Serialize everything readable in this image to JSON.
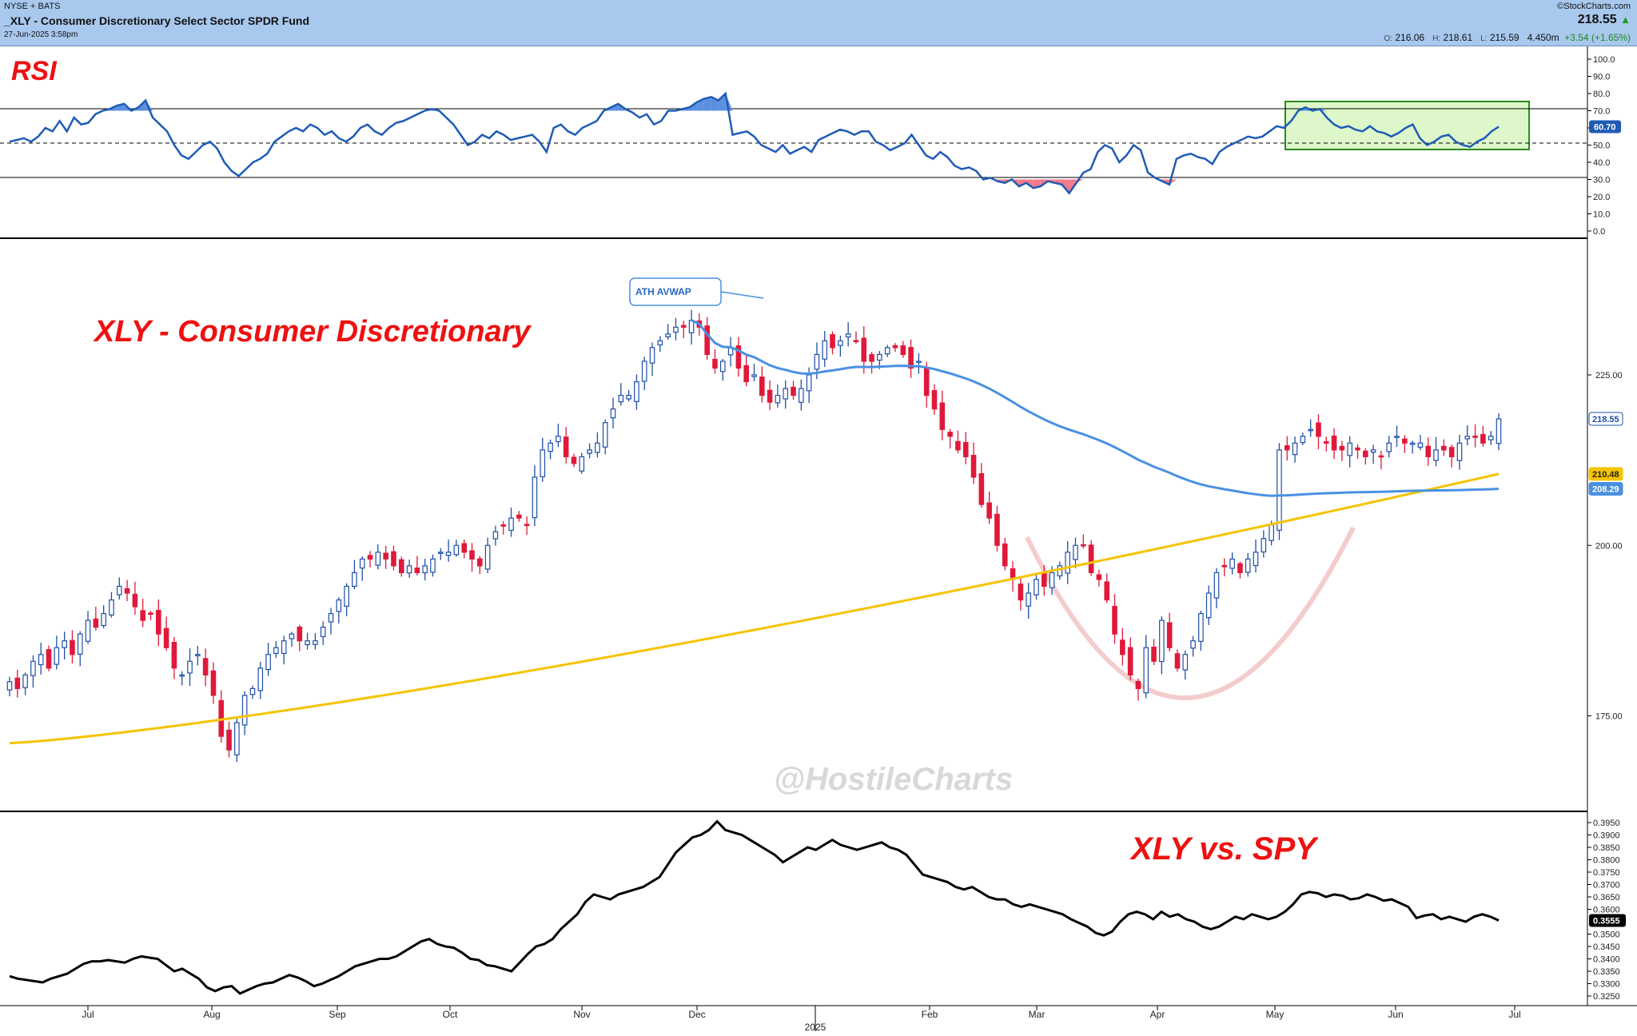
{
  "header": {
    "exchange": "NYSE + BATS",
    "symbol_title": "_XLY - Consumer Discretionary Select Sector SPDR Fund",
    "datetime": "27-Jun-2025 3:58pm",
    "brand": "©StockCharts.com",
    "last_price": "218.55",
    "up_arrow": "▲",
    "ohlc": {
      "open_label": "O:",
      "open": "216.06",
      "high_label": "H:",
      "high": "218.61",
      "low_label": "L:",
      "low": "215.59",
      "volume": "4.450m",
      "change": "+3.54 (+1.65%)"
    }
  },
  "annotations": {
    "rsi_title": "RSI",
    "price_title": "XLY - Consumer Discretionary",
    "ratio_title": "XLY vs. SPY",
    "callout": "ATH AVWAP",
    "watermark": "@HostileCharts"
  },
  "colors": {
    "up": "#1f4fa8",
    "down": "#e0193a",
    "sma200": "#f5c400",
    "avwap": "#4a90e2",
    "rsi_line": "#1f5bb5",
    "ratio_line": "#000000",
    "header_bg": "#a9c8ee",
    "title_red": "#ee1111"
  },
  "chart_data": [
    {
      "type": "line",
      "name": "RSI",
      "ylim": [
        0,
        100
      ],
      "y_ticks": [
        "100.0",
        "90.0",
        "80.0",
        "70.0",
        "60.0",
        "50.0",
        "40.0",
        "30.0",
        "20.0",
        "10.0",
        "0.0"
      ],
      "overbought": 70,
      "oversold": 30,
      "midline": 50,
      "last_value": "60.70",
      "values": [
        52,
        53,
        54,
        52,
        55,
        60,
        58,
        64,
        58,
        66,
        62,
        63,
        68,
        70,
        71,
        73,
        74,
        70,
        72,
        76,
        66,
        62,
        58,
        50,
        44,
        42,
        46,
        50,
        52,
        48,
        40,
        35,
        32,
        36,
        40,
        42,
        45,
        52,
        55,
        58,
        60,
        58,
        62,
        60,
        56,
        58,
        54,
        52,
        55,
        60,
        62,
        58,
        56,
        60,
        63,
        64,
        66,
        68,
        70,
        71,
        70,
        66,
        62,
        56,
        50,
        52,
        56,
        54,
        58,
        56,
        53,
        54,
        55,
        56,
        52,
        46,
        60,
        62,
        58,
        56,
        60,
        62,
        64,
        70,
        72,
        74,
        71,
        69,
        66,
        68,
        62,
        64,
        70,
        70,
        71,
        72,
        75,
        77,
        78,
        76,
        80,
        56,
        57,
        58,
        55,
        50,
        48,
        46,
        50,
        45,
        47,
        49,
        46,
        53,
        55,
        57,
        59,
        58,
        56,
        58,
        58,
        52,
        50,
        47,
        49,
        51,
        56,
        50,
        44,
        42,
        46,
        43,
        38,
        36,
        37,
        35,
        30,
        31,
        29,
        28,
        30,
        26,
        28,
        25,
        26,
        29,
        28,
        27,
        22,
        28,
        34,
        36,
        46,
        50,
        48,
        40,
        44,
        50,
        47,
        34,
        31,
        29,
        27,
        42,
        44,
        45,
        43,
        42,
        39,
        46,
        49,
        51,
        53,
        55,
        54,
        55,
        58,
        61,
        60,
        64,
        70,
        72,
        70,
        71,
        66,
        62,
        60,
        61,
        59,
        58,
        61,
        58,
        57,
        55,
        57,
        60,
        62,
        54,
        50,
        52,
        55,
        56,
        52,
        50,
        49,
        52,
        54,
        58,
        60.7
      ]
    },
    {
      "type": "candlestick",
      "name": "XLY",
      "y_ticks": [
        "225.00",
        "200.00",
        "175.00"
      ],
      "last_price": "218.55",
      "sma200_last": "210.48",
      "avwap_last": "208.29",
      "closes": [
        180,
        179,
        181,
        183,
        184,
        182,
        185,
        186,
        184,
        187,
        189,
        188,
        190,
        192,
        194,
        193,
        191,
        189,
        190,
        187,
        185,
        182,
        181,
        183,
        184,
        181,
        178,
        172,
        170,
        174,
        178,
        179,
        182,
        184,
        185,
        186,
        187,
        186,
        186,
        186,
        188,
        190,
        192,
        194,
        196,
        198,
        198,
        199,
        198,
        197,
        196,
        197,
        196,
        197,
        198,
        199,
        199,
        200,
        199,
        198,
        197,
        200,
        202,
        203,
        204,
        204,
        203,
        210,
        214,
        215,
        216,
        213,
        212,
        213,
        214,
        215,
        218,
        220,
        222,
        222,
        224,
        227,
        229,
        230,
        231,
        232,
        232,
        233,
        232,
        228,
        226,
        227,
        229,
        226,
        224,
        225,
        222,
        221,
        222,
        223,
        222,
        223,
        225,
        228,
        230,
        229,
        230,
        231,
        230,
        227,
        227,
        228,
        229,
        229,
        228,
        226,
        227,
        222,
        220,
        217,
        216,
        214,
        213,
        210,
        206,
        204,
        200,
        197,
        195,
        192,
        193,
        195,
        194,
        196,
        197,
        199,
        200,
        200,
        196,
        195,
        192,
        187,
        184,
        181,
        179,
        185,
        183,
        189,
        185,
        182,
        184,
        186,
        190,
        193,
        196,
        197,
        198,
        196,
        198,
        199,
        201,
        203,
        214,
        214,
        215,
        216,
        217,
        216,
        215,
        214,
        214,
        215,
        214,
        213,
        214,
        213,
        215,
        216,
        215,
        215,
        215,
        213,
        214,
        214,
        213,
        215,
        216,
        216,
        215,
        216,
        218.55
      ]
    },
    {
      "type": "line",
      "name": "XLY vs. SPY",
      "y_ticks": [
        "0.3950",
        "0.3900",
        "0.3850",
        "0.3800",
        "0.3750",
        "0.3700",
        "0.3650",
        "0.3600",
        "0.3555",
        "0.3500",
        "0.3450",
        "0.3400",
        "0.3350",
        "0.3300",
        "0.3250"
      ],
      "last_value": "0.3555",
      "values": [
        0.333,
        0.332,
        0.3315,
        0.331,
        0.3305,
        0.332,
        0.333,
        0.334,
        0.336,
        0.338,
        0.339,
        0.339,
        0.3395,
        0.339,
        0.3385,
        0.34,
        0.341,
        0.3405,
        0.34,
        0.3375,
        0.335,
        0.336,
        0.334,
        0.332,
        0.3285,
        0.327,
        0.3285,
        0.329,
        0.326,
        0.3275,
        0.329,
        0.33,
        0.3305,
        0.332,
        0.3335,
        0.3325,
        0.331,
        0.329,
        0.33,
        0.3315,
        0.333,
        0.335,
        0.337,
        0.338,
        0.339,
        0.34,
        0.34,
        0.341,
        0.343,
        0.345,
        0.347,
        0.348,
        0.346,
        0.345,
        0.3445,
        0.3425,
        0.34,
        0.3395,
        0.3375,
        0.337,
        0.336,
        0.335,
        0.3385,
        0.342,
        0.345,
        0.346,
        0.348,
        0.352,
        0.355,
        0.358,
        0.363,
        0.366,
        0.365,
        0.364,
        0.366,
        0.367,
        0.368,
        0.369,
        0.371,
        0.373,
        0.378,
        0.383,
        0.386,
        0.389,
        0.39,
        0.392,
        0.3955,
        0.392,
        0.391,
        0.39,
        0.388,
        0.386,
        0.384,
        0.382,
        0.379,
        0.381,
        0.383,
        0.385,
        0.384,
        0.386,
        0.388,
        0.386,
        0.385,
        0.384,
        0.385,
        0.386,
        0.387,
        0.385,
        0.384,
        0.382,
        0.378,
        0.374,
        0.373,
        0.372,
        0.371,
        0.369,
        0.368,
        0.369,
        0.367,
        0.365,
        0.364,
        0.364,
        0.362,
        0.361,
        0.362,
        0.361,
        0.36,
        0.359,
        0.358,
        0.356,
        0.3545,
        0.353,
        0.3505,
        0.3495,
        0.351,
        0.355,
        0.358,
        0.359,
        0.358,
        0.356,
        0.359,
        0.357,
        0.358,
        0.356,
        0.355,
        0.353,
        0.352,
        0.353,
        0.355,
        0.357,
        0.356,
        0.358,
        0.357,
        0.356,
        0.357,
        0.359,
        0.362,
        0.366,
        0.367,
        0.3665,
        0.365,
        0.366,
        0.3655,
        0.364,
        0.3645,
        0.366,
        0.365,
        0.3635,
        0.364,
        0.3625,
        0.361,
        0.3565,
        0.3575,
        0.358,
        0.356,
        0.357,
        0.356,
        0.355,
        0.357,
        0.358,
        0.357,
        0.3555
      ]
    }
  ],
  "x_axis": {
    "labels": [
      "Jul",
      "Aug",
      "Sep",
      "Oct",
      "Nov",
      "Dec",
      "2025",
      "Feb",
      "Mar",
      "Apr",
      "May",
      "Jun",
      "Jul"
    ]
  }
}
